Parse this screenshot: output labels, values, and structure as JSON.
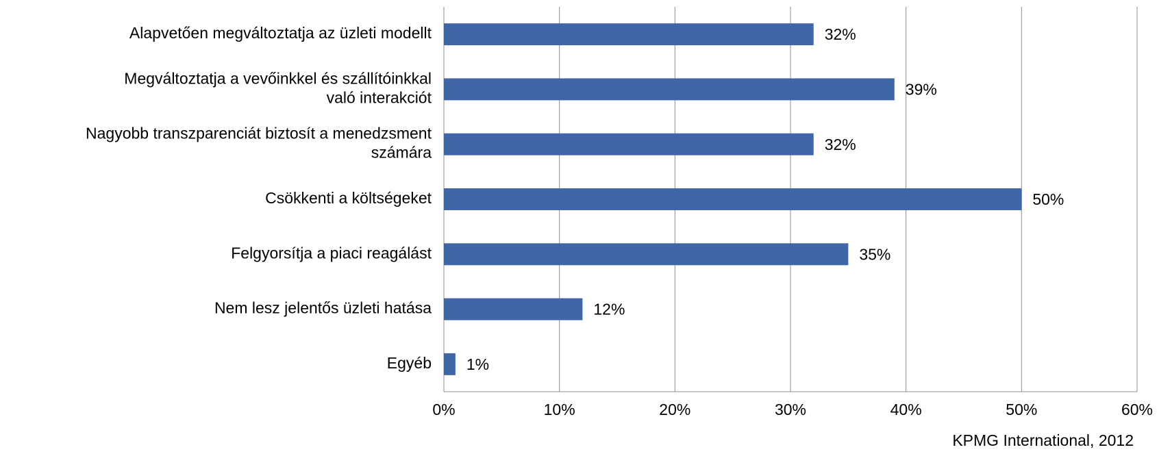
{
  "chart_data": {
    "type": "bar",
    "orientation": "horizontal",
    "categories": [
      "Alapvetően megváltoztatja az üzleti modellt",
      "Megváltoztatja a vevőinkkel és szállítóinkkal\nvaló interakciót",
      "Nagyobb transzparenciát biztosít a menedzsment\nszámára",
      "Csökkenti a költségeket",
      "Felgyorsítja a piaci reagálást",
      "Nem lesz jelentős üzleti hatása",
      "Egyéb"
    ],
    "values": [
      32,
      39,
      32,
      50,
      35,
      12,
      1
    ],
    "value_labels": [
      "32%",
      "39%",
      "32%",
      "50%",
      "35%",
      "12%",
      "1%"
    ],
    "color": "#4066a8",
    "xlim": [
      0,
      60
    ],
    "xticks": [
      {
        "value": 0,
        "label": "0%"
      },
      {
        "value": 10,
        "label": "10%"
      },
      {
        "value": 20,
        "label": "20%"
      },
      {
        "value": 30,
        "label": "30%"
      },
      {
        "value": 40,
        "label": "40%"
      },
      {
        "value": 50,
        "label": "50%"
      },
      {
        "value": 60,
        "label": "60%"
      }
    ],
    "grid": true,
    "source": "KPMG International, 2012"
  }
}
